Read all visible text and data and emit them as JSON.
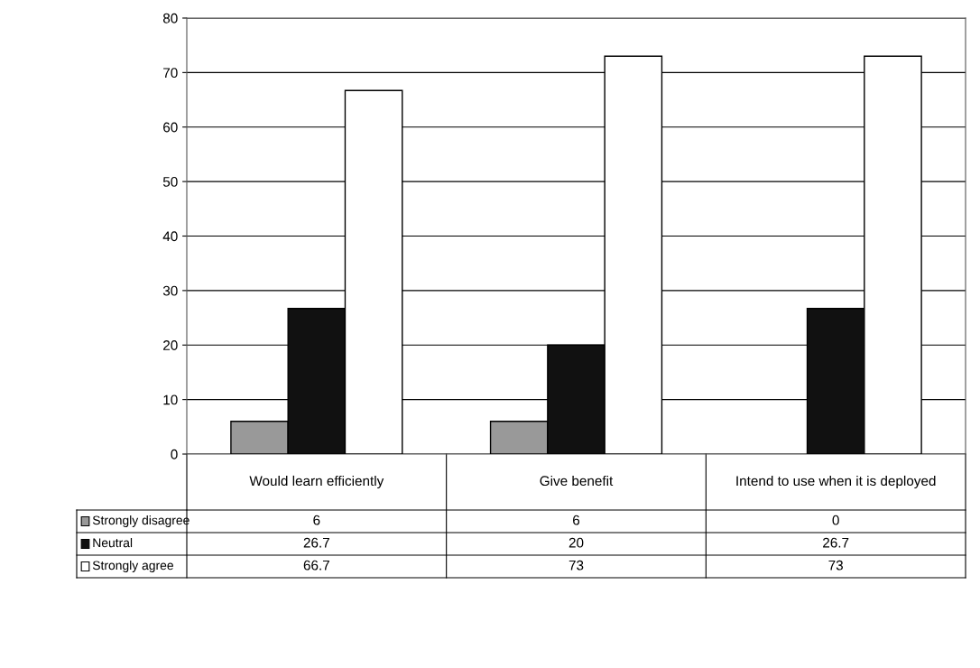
{
  "chart_data": {
    "type": "bar",
    "categories": [
      "Would learn efficiently",
      "Give benefit",
      "Intend to use when it is deployed"
    ],
    "series": [
      {
        "name": "Strongly disagree",
        "color": "#999999",
        "values": [
          6,
          6,
          0
        ]
      },
      {
        "name": "Neutral",
        "color": "#111111",
        "values": [
          26.7,
          20,
          26.7
        ]
      },
      {
        "name": "Strongly agree",
        "color": "#ffffff",
        "values": [
          66.7,
          73,
          73
        ]
      }
    ],
    "ylim": [
      0,
      80
    ],
    "yticks": [
      0,
      10,
      20,
      30,
      40,
      50,
      60,
      70,
      80
    ],
    "grid": "y",
    "legend": "bottom",
    "data_labels": true
  }
}
